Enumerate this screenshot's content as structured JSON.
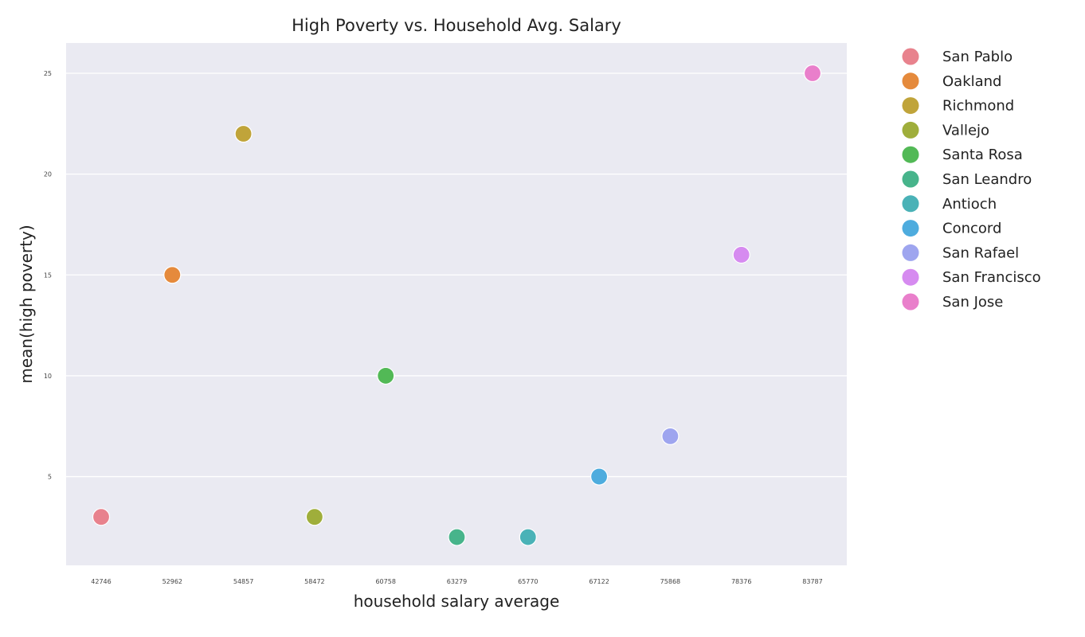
{
  "chart_data": {
    "type": "scatter",
    "title": "High Poverty vs. Household Avg. Salary",
    "xlabel": "household salary average",
    "ylabel": "mean(high poverty)",
    "x_axis_type": "categorical",
    "categories": [
      "42746",
      "52962",
      "54857",
      "58472",
      "60758",
      "63279",
      "65770",
      "67122",
      "75868",
      "78376",
      "83787"
    ],
    "y_ticks": [
      5,
      10,
      15,
      20,
      25
    ],
    "ylim": [
      0.6,
      26.5
    ],
    "grid": true,
    "legend_placement": "outside-right",
    "series": [
      {
        "name": "San Pablo",
        "x": "42746",
        "y": 3,
        "color": "#e8828d"
      },
      {
        "name": "Oakland",
        "x": "52962",
        "y": 15,
        "color": "#e58a3c"
      },
      {
        "name": "Richmond",
        "x": "54857",
        "y": 22,
        "color": "#c0a43a"
      },
      {
        "name": "Vallejo",
        "x": "58472",
        "y": 3,
        "color": "#9fae3b"
      },
      {
        "name": "Santa Rosa",
        "x": "60758",
        "y": 10,
        "color": "#52b956"
      },
      {
        "name": "San Leandro",
        "x": "63279",
        "y": 2,
        "color": "#47b48b"
      },
      {
        "name": "Antioch",
        "x": "65770",
        "y": 2,
        "color": "#4ab2b7"
      },
      {
        "name": "Concord",
        "x": "67122",
        "y": 5,
        "color": "#4eacde"
      },
      {
        "name": "San Rafael",
        "x": "75868",
        "y": 7,
        "color": "#9ea5ef"
      },
      {
        "name": "San Francisco",
        "x": "78376",
        "y": 16,
        "color": "#d68bf0"
      },
      {
        "name": "San Jose",
        "x": "83787",
        "y": 25,
        "color": "#e97fcb"
      }
    ]
  }
}
